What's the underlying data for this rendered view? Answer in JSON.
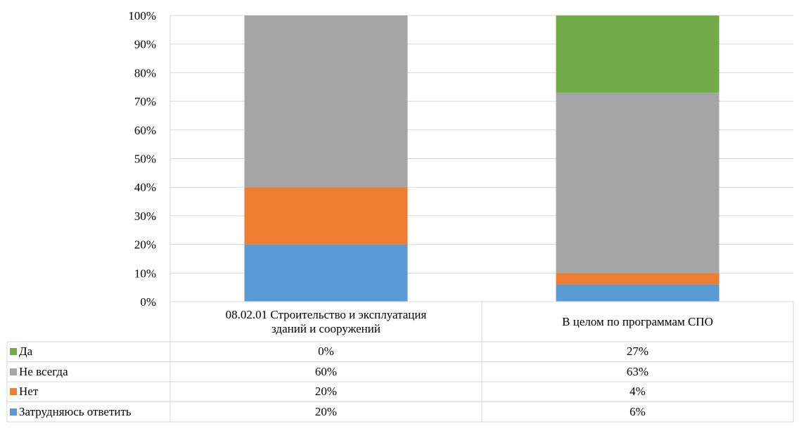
{
  "chart_data": {
    "type": "bar",
    "stacked": true,
    "categories": [
      "08.02.01 Строительство  и эксплуатация зданий и сооружений",
      "В целом по программам СПО"
    ],
    "category_lines": [
      [
        "08.02.01 Строительство  и эксплуатация",
        "зданий и сооружений"
      ],
      [
        "В целом по программам СПО"
      ]
    ],
    "series": [
      {
        "name": "Затрудняюсь ответить",
        "values": [
          20,
          6
        ],
        "labels": [
          "20%",
          "6%"
        ],
        "color": "#5B9BD5"
      },
      {
        "name": "Нет",
        "values": [
          20,
          4
        ],
        "labels": [
          "20%",
          "4%"
        ],
        "color": "#ED7D31"
      },
      {
        "name": "Не всегда",
        "values": [
          60,
          63
        ],
        "labels": [
          "60%",
          "63%"
        ],
        "color": "#A5A5A5"
      },
      {
        "name": "Да",
        "values": [
          0,
          27
        ],
        "labels": [
          "0%",
          "27%"
        ],
        "color": "#70AD47"
      }
    ],
    "ylim": [
      0,
      100
    ],
    "yticks": [
      "0%",
      "10%",
      "20%",
      "30%",
      "40%",
      "50%",
      "60%",
      "70%",
      "80%",
      "90%",
      "100%"
    ],
    "grid": true,
    "legend": "data-table"
  }
}
